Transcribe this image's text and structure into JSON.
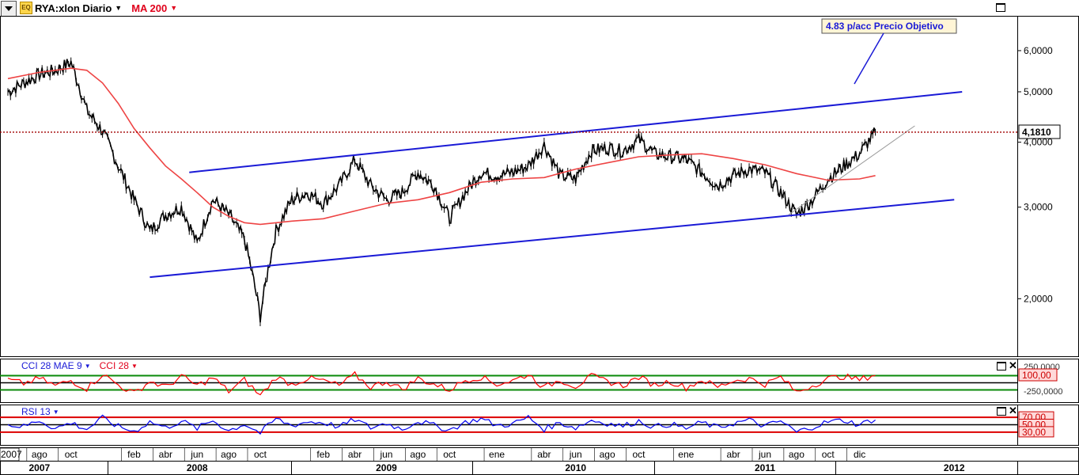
{
  "header": {
    "symbol_title": "RYA:xlon Diario",
    "indicator": "MA 200"
  },
  "price_tag": "4,1810",
  "annotation": "4.83 p/acc Precio Objetivo",
  "cci_panel": {
    "title_a": "CCI 28 MAE 9",
    "title_b": "CCI 28",
    "level_upper": "250,0000",
    "level_tag": "100,00",
    "level_lower": "-250,0000"
  },
  "rsi_panel": {
    "title": "RSI 13",
    "tag_70": "70,00",
    "tag_50": "50,00",
    "tag_30": "30,00"
  },
  "colors": {
    "price_bars": "#000000",
    "ma_line": "#ee4444",
    "channel": "#1a1ad6",
    "cci_line": "#ff0000",
    "rsi_line": "#0000ee",
    "tag_bg": "#ffd9d9"
  },
  "icons": [
    "dropdown-icon",
    "equity-icon",
    "maximize-icon",
    "close-icon"
  ],
  "chart_data": {
    "type": "line",
    "scale": "log",
    "xlabel": "",
    "ylabel": "",
    "y_ticks": [
      "6,0000",
      "5,0000",
      "4,0000",
      "3,0000",
      "2,0000"
    ],
    "y_tick_values": [
      6,
      5,
      4,
      3,
      2
    ],
    "ylim": [
      1.55,
      7.0
    ],
    "x_months": [
      {
        "label": "2007",
        "t": 0
      },
      {
        "label": "ago",
        "t": 2
      },
      {
        "label": "oct",
        "t": 4
      },
      {
        "label": "feb",
        "t": 8
      },
      {
        "label": "abr",
        "t": 10
      },
      {
        "label": "jun",
        "t": 12
      },
      {
        "label": "ago",
        "t": 14
      },
      {
        "label": "oct",
        "t": 16
      },
      {
        "label": "feb",
        "t": 20
      },
      {
        "label": "abr",
        "t": 22
      },
      {
        "label": "jun",
        "t": 24
      },
      {
        "label": "ago",
        "t": 26
      },
      {
        "label": "oct",
        "t": 28
      },
      {
        "label": "ene",
        "t": 31
      },
      {
        "label": "abr",
        "t": 34
      },
      {
        "label": "jun",
        "t": 36
      },
      {
        "label": "ago",
        "t": 38
      },
      {
        "label": "oct",
        "t": 40
      },
      {
        "label": "ene",
        "t": 43
      },
      {
        "label": "abr",
        "t": 46
      },
      {
        "label": "jun",
        "t": 48
      },
      {
        "label": "ago",
        "t": 50
      },
      {
        "label": "oct",
        "t": 52
      },
      {
        "label": "dic",
        "t": 54
      }
    ],
    "x_years": [
      {
        "label": "2007",
        "t": 2
      },
      {
        "label": "2008",
        "t": 12
      },
      {
        "label": "2009",
        "t": 24
      },
      {
        "label": "2010",
        "t": 36
      },
      {
        "label": "2011",
        "t": 48
      },
      {
        "label": "2012",
        "t": 60
      }
    ],
    "x_range": [
      -0.5,
      64
    ],
    "series": [
      {
        "values": [
          [
            0,
            5.0
          ],
          [
            1,
            5.2
          ],
          [
            2,
            5.4
          ],
          [
            3,
            5.5
          ],
          [
            4,
            5.7
          ],
          [
            5,
            4.6
          ],
          [
            6,
            4.2
          ],
          [
            7,
            3.6
          ],
          [
            8,
            3.1
          ],
          [
            9,
            2.7
          ],
          [
            10,
            2.9
          ],
          [
            11,
            3.0
          ],
          [
            12,
            2.55
          ],
          [
            13,
            3.1
          ],
          [
            14,
            2.9
          ],
          [
            15,
            2.6
          ],
          [
            16,
            1.85
          ],
          [
            17,
            2.7
          ],
          [
            18,
            3.1
          ],
          [
            19,
            3.2
          ],
          [
            20,
            3.05
          ],
          [
            21,
            3.3
          ],
          [
            22,
            3.7
          ],
          [
            23,
            3.3
          ],
          [
            24,
            3.1
          ],
          [
            25,
            3.2
          ],
          [
            26,
            3.5
          ],
          [
            27,
            3.3
          ],
          [
            28,
            2.85
          ],
          [
            29,
            3.2
          ],
          [
            30,
            3.5
          ],
          [
            31,
            3.45
          ],
          [
            32,
            3.5
          ],
          [
            33,
            3.6
          ],
          [
            34,
            3.95
          ],
          [
            35,
            3.45
          ],
          [
            36,
            3.4
          ],
          [
            37,
            3.85
          ],
          [
            38,
            3.9
          ],
          [
            39,
            3.85
          ],
          [
            40,
            4.05
          ],
          [
            41,
            3.8
          ],
          [
            42,
            3.75
          ],
          [
            43,
            3.7
          ],
          [
            44,
            3.5
          ],
          [
            45,
            3.3
          ],
          [
            46,
            3.45
          ],
          [
            47,
            3.55
          ],
          [
            48,
            3.5
          ],
          [
            49,
            3.2
          ],
          [
            50,
            2.9
          ],
          [
            51,
            3.1
          ],
          [
            52,
            3.4
          ],
          [
            53,
            3.6
          ],
          [
            54,
            3.8
          ],
          [
            55,
            4.18
          ]
        ]
      },
      {
        "name": "MA 200",
        "values": [
          [
            0,
            5.3
          ],
          [
            2,
            5.45
          ],
          [
            4,
            5.55
          ],
          [
            5,
            5.5
          ],
          [
            6,
            5.2
          ],
          [
            7,
            4.75
          ],
          [
            8,
            4.25
          ],
          [
            9,
            3.9
          ],
          [
            10,
            3.6
          ],
          [
            11,
            3.4
          ],
          [
            12,
            3.2
          ],
          [
            13,
            3.0
          ],
          [
            14,
            2.88
          ],
          [
            15,
            2.8
          ],
          [
            16,
            2.78
          ],
          [
            18,
            2.82
          ],
          [
            20,
            2.85
          ],
          [
            22,
            2.95
          ],
          [
            24,
            3.05
          ],
          [
            26,
            3.1
          ],
          [
            28,
            3.2
          ],
          [
            30,
            3.35
          ],
          [
            32,
            3.4
          ],
          [
            34,
            3.42
          ],
          [
            36,
            3.55
          ],
          [
            38,
            3.65
          ],
          [
            40,
            3.75
          ],
          [
            42,
            3.78
          ],
          [
            44,
            3.8
          ],
          [
            46,
            3.72
          ],
          [
            48,
            3.62
          ],
          [
            50,
            3.48
          ],
          [
            52,
            3.38
          ],
          [
            54,
            3.4
          ],
          [
            55,
            3.45
          ]
        ]
      }
    ],
    "channel_lines": [
      {
        "name": "upper",
        "values": [
          [
            11.5,
            3.5
          ],
          [
            60.5,
            5.0
          ]
        ]
      },
      {
        "name": "lower",
        "values": [
          [
            9,
            2.2
          ],
          [
            60,
            3.1
          ]
        ]
      },
      {
        "name": "trend",
        "values": [
          [
            49.5,
            2.9
          ],
          [
            57.5,
            4.3
          ]
        ]
      }
    ],
    "target_line": 4.181,
    "cci": {
      "values": [
        40,
        -10,
        60,
        -40,
        30,
        -80,
        120,
        -30,
        -150,
        20,
        -60,
        90,
        -40,
        70,
        -120,
        40,
        -180,
        80,
        -20,
        60,
        30,
        -40,
        110,
        -60,
        20,
        -90,
        60,
        -20,
        -100,
        40,
        80,
        -20,
        30,
        120,
        -70,
        40,
        -50,
        90,
        20,
        -40,
        80,
        -30,
        20,
        -70,
        40,
        -60,
        30,
        60,
        -20,
        80,
        -130,
        -40,
        60,
        90,
        40,
        120,
        70
      ],
      "lines": [
        100,
        0,
        -100
      ]
    },
    "rsi": {
      "values": [
        50,
        45,
        62,
        40,
        55,
        38,
        68,
        45,
        32,
        58,
        42,
        60,
        40,
        62,
        34,
        52,
        28,
        66,
        48,
        58,
        56,
        44,
        64,
        42,
        54,
        38,
        60,
        48,
        36,
        56,
        66,
        48,
        52,
        70,
        38,
        55,
        42,
        62,
        54,
        46,
        60,
        44,
        52,
        40,
        56,
        42,
        54,
        62,
        46,
        60,
        30,
        44,
        58,
        62,
        50,
        66,
        70
      ],
      "lines": [
        70,
        50,
        30
      ]
    }
  }
}
